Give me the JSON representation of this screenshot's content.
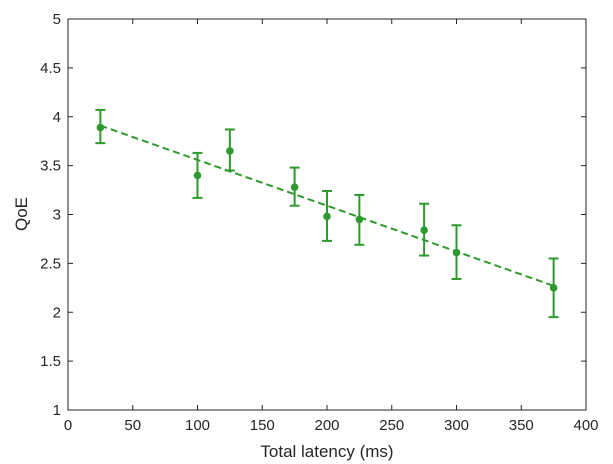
{
  "chart_data": {
    "type": "scatter",
    "title": "",
    "xlabel": "Total latency (ms)",
    "ylabel": "QoE",
    "xlim": [
      0,
      400
    ],
    "ylim": [
      1,
      5
    ],
    "xticks": [
      "0",
      "50",
      "100",
      "150",
      "200",
      "250",
      "300",
      "350",
      "400"
    ],
    "yticks": [
      "1",
      "1.5",
      "2",
      "2.5",
      "3",
      "3.5",
      "4",
      "4.5",
      "5"
    ],
    "grid": false,
    "legend": "none",
    "color": "#2e9a2e",
    "series": [
      {
        "x": [
          25,
          100,
          125,
          175,
          200,
          225,
          275,
          300,
          375
        ],
        "y": [
          3.89,
          3.4,
          3.65,
          3.28,
          2.98,
          2.95,
          2.84,
          2.61,
          2.25
        ],
        "lower": [
          3.73,
          3.17,
          3.45,
          3.09,
          2.73,
          2.69,
          2.58,
          2.34,
          1.95
        ],
        "upper": [
          4.07,
          3.63,
          3.87,
          3.48,
          3.24,
          3.2,
          3.11,
          2.89,
          2.55
        ]
      }
    ],
    "trendline": {
      "style": "dashed",
      "x": [
        25,
        375
      ],
      "y": [
        3.91,
        2.27
      ]
    }
  }
}
